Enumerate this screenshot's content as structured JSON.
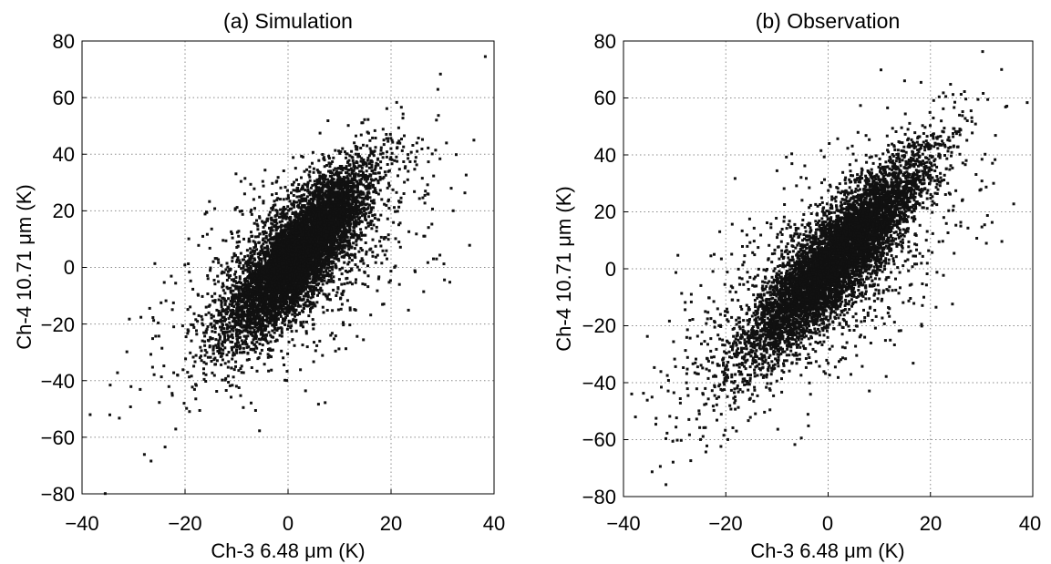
{
  "chart_data": [
    {
      "type": "scatter",
      "title": "(a) Simulation",
      "xlabel": "Ch-3 6.48 μm (K)",
      "ylabel": "Ch-4 10.71 μm (K)",
      "xlim": [
        -40,
        40
      ],
      "ylim": [
        -80,
        80
      ],
      "xticks": [
        -40,
        -20,
        0,
        20,
        40
      ],
      "yticks": [
        -80,
        -60,
        -40,
        -20,
        0,
        20,
        40,
        60,
        80
      ],
      "xtick_labels": [
        "−40",
        "−20",
        "0",
        "20",
        "40"
      ],
      "ytick_labels": [
        "−80",
        "−60",
        "−40",
        "−20",
        "0",
        "20",
        "40",
        "60",
        "80"
      ],
      "grid": true,
      "marker_color": "#111111",
      "points": [
        [
          38.3,
          74.5
        ],
        [
          29.6,
          68.3
        ],
        [
          29.1,
          62.9
        ],
        [
          29.2,
          53.7
        ],
        [
          21.1,
          58.3
        ],
        [
          22.0,
          56.6
        ],
        [
          26.1,
          45.2
        ],
        [
          27.2,
          42.2
        ],
        [
          28.0,
          40.1
        ],
        [
          20.2,
          44.9
        ],
        [
          23.3,
          39.9
        ],
        [
          18.6,
          45.0
        ],
        [
          16.1,
          41.1
        ],
        [
          13.6,
          39.1
        ],
        [
          12.4,
          34.3
        ],
        [
          10.3,
          31.1
        ],
        [
          -35.5,
          -79.9
        ],
        [
          -27.9,
          -66.1
        ],
        [
          -26.6,
          -68.4
        ],
        [
          -34.6,
          -52.1
        ],
        [
          -21.8,
          -57.1
        ],
        [
          -28.7,
          -43.1
        ],
        [
          -30.5,
          -42.1
        ],
        [
          -25.0,
          -47.7
        ],
        [
          -19.7,
          -49.8
        ],
        [
          -26.0,
          -37.9
        ],
        [
          -24.1,
          -34.8
        ],
        [
          -22.2,
          -37.2
        ],
        [
          -19.0,
          -30.2
        ],
        [
          -15.2,
          -28.1
        ],
        [
          -12.3,
          -26.4
        ],
        [
          -18.4,
          -20.3
        ],
        [
          -14.9,
          -19.9
        ],
        [
          -10.4,
          -36.1
        ],
        [
          -12.2,
          -39.8
        ],
        [
          -9.2,
          -45.3
        ]
      ],
      "core": {
        "center": [
          2.2,
          5.0
        ],
        "spread_major": 15.5,
        "spread_minor": 3.6,
        "slope": 2.6,
        "n": 6500
      },
      "halo": {
        "center": [
          1.5,
          2.0
        ],
        "spread_major": 22.0,
        "spread_minor": 9.0,
        "slope": 2.2,
        "n": 1300
      }
    },
    {
      "type": "scatter",
      "title": "(b) Observation",
      "xlabel": "Ch-3 6.48 μm (K)",
      "ylabel": "Ch-4 10.71 μm (K)",
      "xlim": [
        -40,
        40
      ],
      "ylim": [
        -80,
        80
      ],
      "xticks": [
        -40,
        -20,
        0,
        20,
        40
      ],
      "yticks": [
        -80,
        -60,
        -40,
        -20,
        0,
        20,
        40,
        60,
        80
      ],
      "xtick_labels": [
        "−40",
        "−20",
        "0",
        "20",
        "40"
      ],
      "ytick_labels": [
        "−80",
        "−60",
        "−40",
        "−20",
        "0",
        "20",
        "40",
        "60",
        "80"
      ],
      "grid": true,
      "marker_color": "#111111",
      "points": [
        [
          33.9,
          70.0
        ],
        [
          30.3,
          61.6
        ],
        [
          29.3,
          59.5
        ],
        [
          23.0,
          60.5
        ],
        [
          21.7,
          60.4
        ],
        [
          22.5,
          56.2
        ],
        [
          26.8,
          52.8
        ],
        [
          25.4,
          48.2
        ],
        [
          23.9,
          42.7
        ],
        [
          24.3,
          35.4
        ],
        [
          19.2,
          44.9
        ],
        [
          15.1,
          54.4
        ],
        [
          -34.4,
          -71.3
        ],
        [
          -32.8,
          -69.4
        ],
        [
          -31.7,
          -75.8
        ],
        [
          -30.3,
          -67.9
        ],
        [
          -36.1,
          -43.7
        ],
        [
          -32.7,
          -36.1
        ],
        [
          -31.2,
          -39.2
        ],
        [
          -28.9,
          -45.6
        ],
        [
          -27.1,
          -58.3
        ],
        [
          -24.3,
          -55.8
        ],
        [
          -23.7,
          -62.2
        ],
        [
          -20.3,
          -40.6
        ],
        [
          -18.2,
          -45.0
        ],
        [
          -15.2,
          -52.2
        ],
        [
          -12.8,
          -33.4
        ]
      ],
      "core": {
        "center": [
          1.5,
          3.5
        ],
        "spread_major": 19.0,
        "spread_minor": 3.9,
        "slope": 2.25,
        "n": 6500
      },
      "halo": {
        "center": [
          -1.0,
          -2.0
        ],
        "spread_major": 25.0,
        "spread_minor": 9.5,
        "slope": 2.1,
        "n": 1300
      }
    }
  ]
}
